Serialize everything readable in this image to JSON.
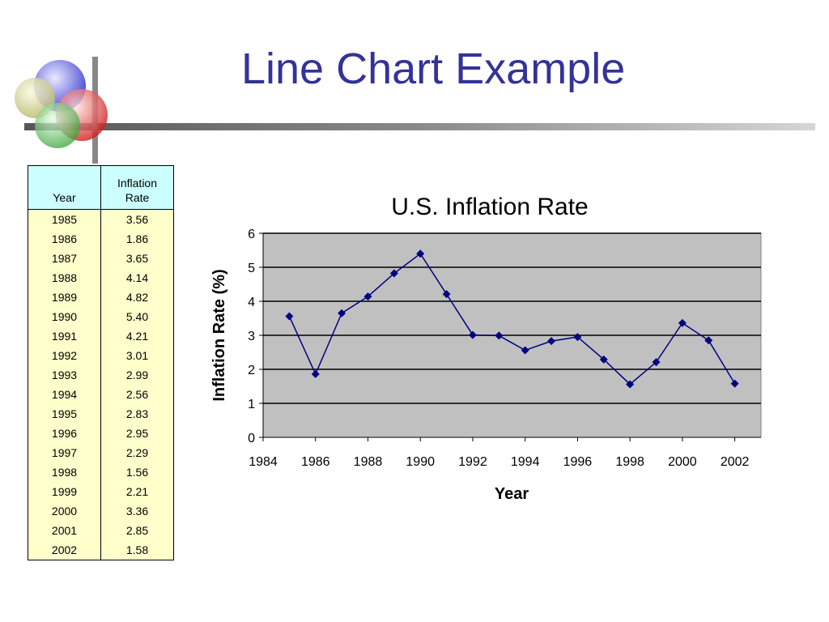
{
  "slide": {
    "title": "Line Chart Example"
  },
  "table": {
    "headers": [
      "Year",
      "Inflation Rate"
    ],
    "rows": [
      [
        "1985",
        "3.56"
      ],
      [
        "1986",
        "1.86"
      ],
      [
        "1987",
        "3.65"
      ],
      [
        "1988",
        "4.14"
      ],
      [
        "1989",
        "4.82"
      ],
      [
        "1990",
        "5.40"
      ],
      [
        "1991",
        "4.21"
      ],
      [
        "1992",
        "3.01"
      ],
      [
        "1993",
        "2.99"
      ],
      [
        "1994",
        "2.56"
      ],
      [
        "1995",
        "2.83"
      ],
      [
        "1996",
        "2.95"
      ],
      [
        "1997",
        "2.29"
      ],
      [
        "1998",
        "1.56"
      ],
      [
        "1999",
        "2.21"
      ],
      [
        "2000",
        "3.36"
      ],
      [
        "2001",
        "2.85"
      ],
      [
        "2002",
        "1.58"
      ]
    ],
    "colors": {
      "header_bg": "#ccffff",
      "body_bg": "#ffffcc"
    }
  },
  "chart_data": {
    "type": "line",
    "title": "U.S. Inflation Rate",
    "xlabel": "Year",
    "ylabel": "Inflation Rate (%)",
    "x": [
      1985,
      1986,
      1987,
      1988,
      1989,
      1990,
      1991,
      1992,
      1993,
      1994,
      1995,
      1996,
      1997,
      1998,
      1999,
      2000,
      2001,
      2002
    ],
    "series": [
      {
        "values": [
          3.56,
          1.86,
          3.65,
          4.14,
          4.82,
          5.4,
          4.21,
          3.01,
          2.99,
          2.56,
          2.83,
          2.95,
          2.29,
          1.56,
          2.21,
          3.36,
          2.85,
          1.58
        ],
        "color": "#000080",
        "marker": "diamond"
      }
    ],
    "xlim": [
      1984,
      2003
    ],
    "ylim": [
      0,
      6
    ],
    "xticks": [
      "1984",
      "1986",
      "1988",
      "1990",
      "1992",
      "1994",
      "1996",
      "1998",
      "2000",
      "2002"
    ],
    "yticks": [
      "0",
      "1",
      "2",
      "3",
      "4",
      "5",
      "6"
    ],
    "grid": true,
    "plot_background": "#c0c0c0",
    "legend": "none"
  }
}
